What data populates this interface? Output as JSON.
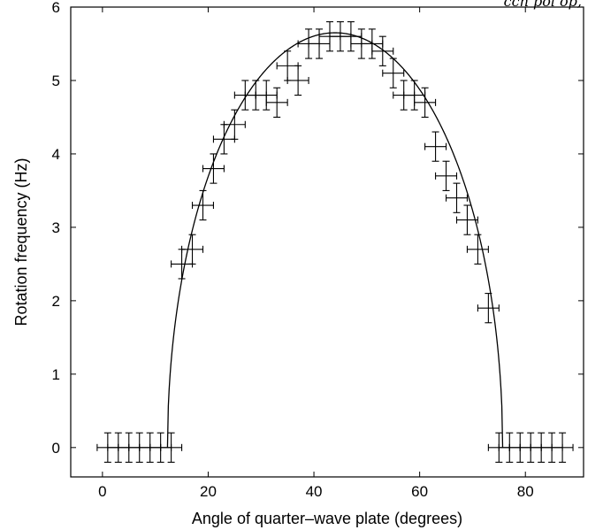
{
  "chart_data": {
    "type": "scatter",
    "xlabel": "Angle of quarter–wave plate (degrees)",
    "ylabel": "Rotation frequency (Hz)",
    "top_text": "ccn  pol op,",
    "xlim": [
      -6,
      91
    ],
    "ylim": [
      -0.4,
      6
    ],
    "xticks": [
      0,
      20,
      40,
      60,
      80
    ],
    "yticks": [
      0,
      1,
      2,
      3,
      4,
      5,
      6
    ],
    "grid": false,
    "legend": "none",
    "points": [
      {
        "x": 1,
        "y": 0,
        "xerr": 2,
        "yerr": 0.2
      },
      {
        "x": 3,
        "y": 0,
        "xerr": 2,
        "yerr": 0.2
      },
      {
        "x": 5,
        "y": 0,
        "xerr": 2,
        "yerr": 0.2
      },
      {
        "x": 7,
        "y": 0,
        "xerr": 2,
        "yerr": 0.2
      },
      {
        "x": 9,
        "y": 0,
        "xerr": 2,
        "yerr": 0.2
      },
      {
        "x": 11,
        "y": 0,
        "xerr": 2,
        "yerr": 0.2
      },
      {
        "x": 13,
        "y": 0,
        "xerr": 2,
        "yerr": 0.2
      },
      {
        "x": 15,
        "y": 2.5,
        "xerr": 2,
        "yerr": 0.2
      },
      {
        "x": 17,
        "y": 2.7,
        "xerr": 2,
        "yerr": 0.2
      },
      {
        "x": 19,
        "y": 3.3,
        "xerr": 2,
        "yerr": 0.2
      },
      {
        "x": 21,
        "y": 3.8,
        "xerr": 2,
        "yerr": 0.2
      },
      {
        "x": 23,
        "y": 4.2,
        "xerr": 2,
        "yerr": 0.2
      },
      {
        "x": 25,
        "y": 4.4,
        "xerr": 2,
        "yerr": 0.2
      },
      {
        "x": 27,
        "y": 4.8,
        "xerr": 2,
        "yerr": 0.2
      },
      {
        "x": 29,
        "y": 4.8,
        "xerr": 2,
        "yerr": 0.2
      },
      {
        "x": 31,
        "y": 4.8,
        "xerr": 2,
        "yerr": 0.2
      },
      {
        "x": 33,
        "y": 4.7,
        "xerr": 2,
        "yerr": 0.2
      },
      {
        "x": 35,
        "y": 5.2,
        "xerr": 2,
        "yerr": 0.2
      },
      {
        "x": 37,
        "y": 5.0,
        "xerr": 2,
        "yerr": 0.2
      },
      {
        "x": 39,
        "y": 5.5,
        "xerr": 2,
        "yerr": 0.2
      },
      {
        "x": 41,
        "y": 5.5,
        "xerr": 2,
        "yerr": 0.2
      },
      {
        "x": 43,
        "y": 5.6,
        "xerr": 2,
        "yerr": 0.2
      },
      {
        "x": 45,
        "y": 5.6,
        "xerr": 2,
        "yerr": 0.2
      },
      {
        "x": 47,
        "y": 5.6,
        "xerr": 2,
        "yerr": 0.2
      },
      {
        "x": 49,
        "y": 5.5,
        "xerr": 2,
        "yerr": 0.2
      },
      {
        "x": 51,
        "y": 5.5,
        "xerr": 2,
        "yerr": 0.2
      },
      {
        "x": 53,
        "y": 5.4,
        "xerr": 2,
        "yerr": 0.2
      },
      {
        "x": 55,
        "y": 5.1,
        "xerr": 2,
        "yerr": 0.2
      },
      {
        "x": 57,
        "y": 4.8,
        "xerr": 2,
        "yerr": 0.2
      },
      {
        "x": 59,
        "y": 4.8,
        "xerr": 2,
        "yerr": 0.2
      },
      {
        "x": 61,
        "y": 4.7,
        "xerr": 2,
        "yerr": 0.2
      },
      {
        "x": 63,
        "y": 4.1,
        "xerr": 2,
        "yerr": 0.2
      },
      {
        "x": 65,
        "y": 3.7,
        "xerr": 2,
        "yerr": 0.2
      },
      {
        "x": 67,
        "y": 3.4,
        "xerr": 2,
        "yerr": 0.2
      },
      {
        "x": 69,
        "y": 3.1,
        "xerr": 2,
        "yerr": 0.2
      },
      {
        "x": 71,
        "y": 2.7,
        "xerr": 2,
        "yerr": 0.2
      },
      {
        "x": 73,
        "y": 1.9,
        "xerr": 2,
        "yerr": 0.2
      },
      {
        "x": 75,
        "y": 0,
        "xerr": 2,
        "yerr": 0.2
      },
      {
        "x": 77,
        "y": 0,
        "xerr": 2,
        "yerr": 0.2
      },
      {
        "x": 79,
        "y": 0,
        "xerr": 2,
        "yerr": 0.2
      },
      {
        "x": 81,
        "y": 0,
        "xerr": 2,
        "yerr": 0.2
      },
      {
        "x": 83,
        "y": 0,
        "xerr": 2,
        "yerr": 0.2
      },
      {
        "x": 85,
        "y": 0,
        "xerr": 2,
        "yerr": 0.2
      },
      {
        "x": 87,
        "y": 0,
        "xerr": 2,
        "yerr": 0.2
      }
    ],
    "fit_curve": {
      "model": "y = A * sqrt(1 - (x - x0)^2 / w^2)",
      "A": 5.65,
      "x0": 44,
      "w": 31.7,
      "x_min": 12.3,
      "x_max": 75.7
    }
  }
}
